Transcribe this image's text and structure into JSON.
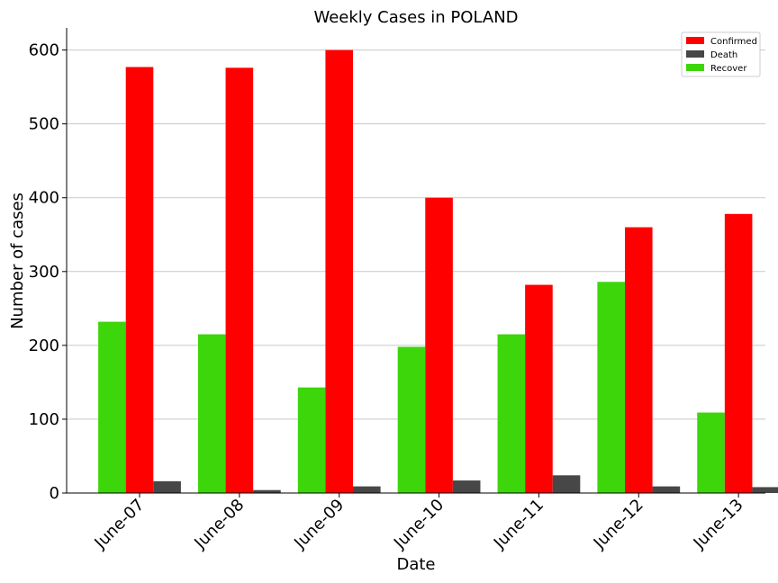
{
  "chart_data": {
    "type": "bar",
    "title": "Weekly Cases in POLAND",
    "xlabel": "Date",
    "ylabel": "Number of cases",
    "categories": [
      "June-07",
      "June-08",
      "June-09",
      "June-10",
      "June-11",
      "June-12",
      "June-13"
    ],
    "series": [
      {
        "name": "Recover",
        "color": "#3dd60a",
        "values": [
          232,
          215,
          143,
          198,
          215,
          286,
          109
        ]
      },
      {
        "name": "Confirmed",
        "color": "#ff0000",
        "values": [
          577,
          576,
          600,
          400,
          282,
          360,
          378
        ]
      },
      {
        "name": "Death",
        "color": "#474747",
        "values": [
          16,
          4,
          9,
          17,
          24,
          9,
          8
        ]
      }
    ],
    "legend_order": [
      "Confirmed",
      "Death",
      "Recover"
    ],
    "legend_position": "top-right",
    "ylim": [
      0,
      630
    ],
    "yticks": [
      0,
      100,
      200,
      300,
      400,
      500,
      600
    ],
    "grid": "horizontal"
  }
}
